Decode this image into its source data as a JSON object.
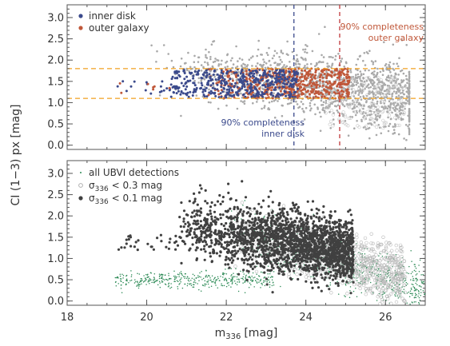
{
  "chart_data": [
    {
      "type": "scatter",
      "panel": "top",
      "xlim": [
        18,
        27
      ],
      "ylim": [
        -0.1,
        3.3
      ],
      "yticks": [
        "0.0",
        "0.5",
        "1.0",
        "1.5",
        "2.0",
        "2.5",
        "3.0"
      ],
      "series": [
        {
          "name": "",
          "color": "#a9a9a9",
          "marker": "dot"
        },
        {
          "name": "inner disk",
          "color": "#3b4a8c",
          "marker": "dot"
        },
        {
          "name": "outer galaxy",
          "color": "#c0583a",
          "marker": "dot"
        }
      ],
      "hlines": [
        {
          "y": 1.8,
          "color": "#f0a020",
          "style": "dashed"
        },
        {
          "y": 1.1,
          "color": "#f0a020",
          "style": "dashed"
        }
      ],
      "vlines": [
        {
          "x": 23.7,
          "color": "#3b4a8c",
          "style": "dashed",
          "label": [
            "90% completeness",
            "inner disk"
          ]
        },
        {
          "x": 24.85,
          "color": "#c0383a",
          "style": "dashed",
          "label": [
            "90% completeness",
            "outer galaxy"
          ]
        }
      ],
      "legend": [
        "inner disk",
        "outer galaxy"
      ],
      "legend_position": "top-left",
      "grid": false
    },
    {
      "type": "scatter",
      "panel": "bottom",
      "xlim": [
        18,
        27
      ],
      "ylim": [
        -0.1,
        3.3
      ],
      "xticks": [
        "18",
        "20",
        "22",
        "24",
        "26"
      ],
      "yticks": [
        "0.0",
        "0.5",
        "1.0",
        "1.5",
        "2.0",
        "2.5",
        "3.0"
      ],
      "series": [
        {
          "name": "all UBVI detections",
          "color": "#2e8b57",
          "marker": "small-dot"
        },
        {
          "name": "σ336 < 0.3 mag",
          "color": "#b0b0b0",
          "marker": "open-circle"
        },
        {
          "name": "σ336 < 0.1 mag",
          "color": "#404040",
          "marker": "filled-circle"
        }
      ],
      "legend_position": "top-left",
      "grid": false
    }
  ],
  "axes": {
    "xlabel": "m",
    "xlabel_sub": "336",
    "xlabel_unit": "[mag]",
    "ylabel": "CI (1−3) px [mag]"
  },
  "legends": {
    "top": [
      {
        "label": "inner disk",
        "color": "#3b4a8c"
      },
      {
        "label": "outer galaxy",
        "color": "#c0583a"
      }
    ],
    "bottom": [
      {
        "label": "all UBVI detections",
        "color": "#2e8b57"
      },
      {
        "prefix": "σ",
        "sub": "336",
        "label": " < 0.3 mag",
        "color": "#b0b0b0"
      },
      {
        "prefix": "σ",
        "sub": "336",
        "label": " < 0.1 mag",
        "color": "#404040"
      }
    ]
  },
  "annotations": {
    "inner": [
      "90% completeness",
      "inner disk"
    ],
    "outer": [
      "90% completeness",
      "outer galaxy"
    ]
  },
  "colors": {
    "gray": "#a9a9a9",
    "inner": "#3b4a8c",
    "outer": "#c0583a",
    "green": "#2e8b57",
    "darkgray": "#404040",
    "orange": "#f0a020",
    "red_line": "#c0383a"
  }
}
